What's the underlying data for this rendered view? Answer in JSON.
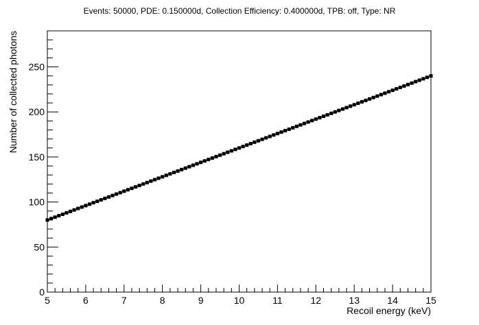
{
  "chart_data": {
    "type": "scatter",
    "title": "Events: 50000, PDE: 0.150000d, Collection Efficiency: 0.400000d, TPB: off, Type: NR",
    "xlabel": "Recoil energy (keV)",
    "ylabel": "Number of collected photons",
    "xlim": [
      5,
      15
    ],
    "ylim": [
      0,
      290
    ],
    "xticks": [
      5,
      6,
      7,
      8,
      9,
      10,
      11,
      12,
      13,
      14,
      15
    ],
    "yticks": [
      0,
      50,
      100,
      150,
      200,
      250
    ],
    "grid": false,
    "legend": "none",
    "marker_color": "#000000",
    "series": [
      {
        "x_start": 5.0,
        "x_end": 15.0,
        "x_step": 0.1,
        "y_at_x_start": 80,
        "y_at_x_end": 240,
        "bin_width": 0.1
      }
    ]
  }
}
